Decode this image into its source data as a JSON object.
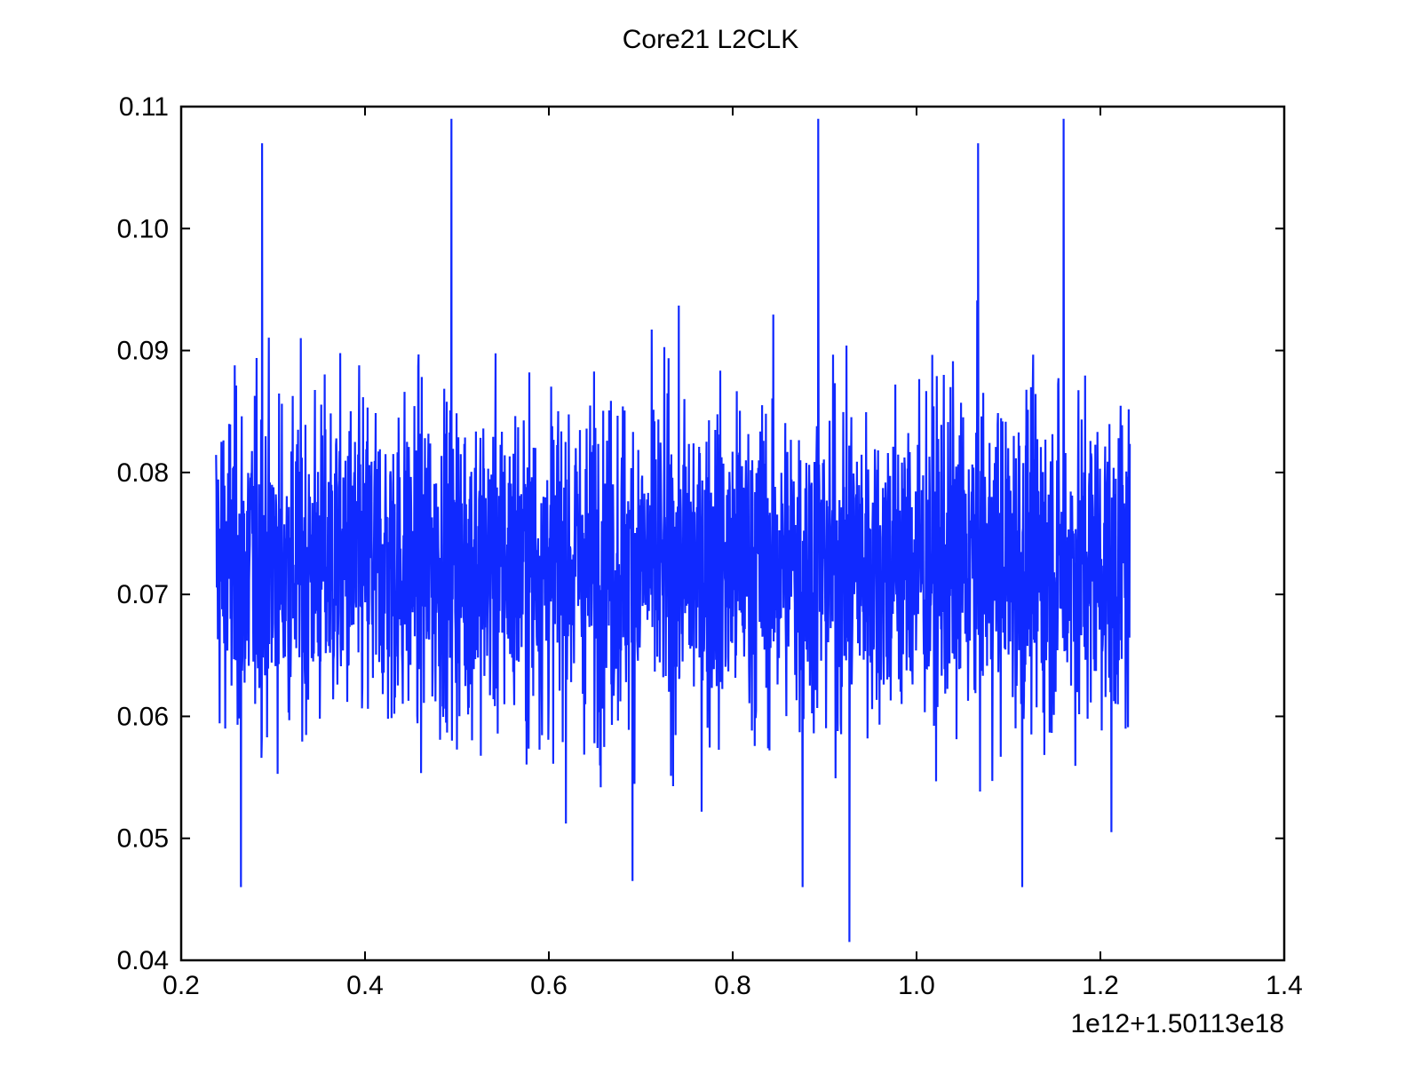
{
  "chart_data": {
    "type": "line",
    "title": "Core21 L2CLK",
    "xlabel": "",
    "ylabel": "",
    "x_offset_label": "1e12+1.50113e18",
    "xlim": [
      0.2,
      1.4
    ],
    "ylim": [
      0.04,
      0.11
    ],
    "x_ticks": [
      0.2,
      0.4,
      0.6,
      0.8,
      1.0,
      1.2,
      1.4
    ],
    "x_tick_labels": [
      "0.2",
      "0.4",
      "0.6",
      "0.8",
      "1.0",
      "1.2",
      "1.4"
    ],
    "y_ticks": [
      0.04,
      0.05,
      0.06,
      0.07,
      0.08,
      0.09,
      0.1,
      0.11
    ],
    "y_tick_labels": [
      "0.04",
      "0.05",
      "0.06",
      "0.07",
      "0.08",
      "0.09",
      "0.10",
      "0.11"
    ],
    "grid": false,
    "legend": "none",
    "colors": {
      "series": "#1029ff",
      "axes": "#000000"
    },
    "series": [
      {
        "x_start": 0.238,
        "x_end": 1.232,
        "band_mean": 0.0725,
        "typical_range": [
          0.062,
          0.084
        ],
        "notable_points": [
          {
            "x": 0.265,
            "y": 0.046
          },
          {
            "x": 0.288,
            "y": 0.107
          },
          {
            "x": 0.494,
            "y": 0.109
          },
          {
            "x": 0.691,
            "y": 0.0465
          },
          {
            "x": 0.876,
            "y": 0.046
          },
          {
            "x": 0.893,
            "y": 0.109
          },
          {
            "x": 0.927,
            "y": 0.0415
          },
          {
            "x": 1.067,
            "y": 0.107
          },
          {
            "x": 1.115,
            "y": 0.046
          },
          {
            "x": 1.16,
            "y": 0.109
          },
          {
            "x": 1.212,
            "y": 0.0505
          }
        ]
      }
    ]
  }
}
